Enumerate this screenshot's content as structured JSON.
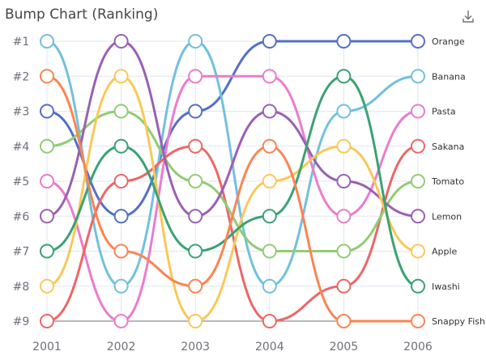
{
  "header": {
    "title": "Bump Chart (Ranking)",
    "download_icon": "download-icon"
  },
  "chart_data": {
    "type": "line",
    "title": "Bump Chart (Ranking)",
    "x": [
      "2001",
      "2002",
      "2003",
      "2004",
      "2005",
      "2006"
    ],
    "y_tick_labels": [
      "#1",
      "#2",
      "#3",
      "#4",
      "#5",
      "#6",
      "#7",
      "#8",
      "#9"
    ],
    "ylim": [
      1,
      9
    ],
    "y_inverted": true,
    "grid": true,
    "series": [
      {
        "name": "Orange",
        "color": "#5470c6",
        "values": [
          3,
          6,
          3,
          1,
          1,
          1
        ]
      },
      {
        "name": "Banana",
        "color": "#73c0de",
        "values": [
          1,
          8,
          1,
          8,
          3,
          2
        ]
      },
      {
        "name": "Pasta",
        "color": "#ea7ccc",
        "values": [
          5,
          9,
          2,
          2,
          6,
          3
        ]
      },
      {
        "name": "Sakana",
        "color": "#ee6666",
        "values": [
          9,
          5,
          4,
          9,
          8,
          4
        ]
      },
      {
        "name": "Tomato",
        "color": "#91cc75",
        "values": [
          4,
          3,
          5,
          7,
          7,
          5
        ]
      },
      {
        "name": "Lemon",
        "color": "#9a60b4",
        "values": [
          6,
          1,
          6,
          3,
          5,
          6
        ]
      },
      {
        "name": "Apple",
        "color": "#fac858",
        "values": [
          8,
          2,
          9,
          5,
          4,
          7
        ]
      },
      {
        "name": "Iwashi",
        "color": "#3ba272",
        "values": [
          7,
          4,
          7,
          6,
          2,
          8
        ]
      },
      {
        "name": "Snappy Fish",
        "color": "#fc8452",
        "values": [
          2,
          7,
          8,
          4,
          9,
          9
        ]
      }
    ]
  }
}
